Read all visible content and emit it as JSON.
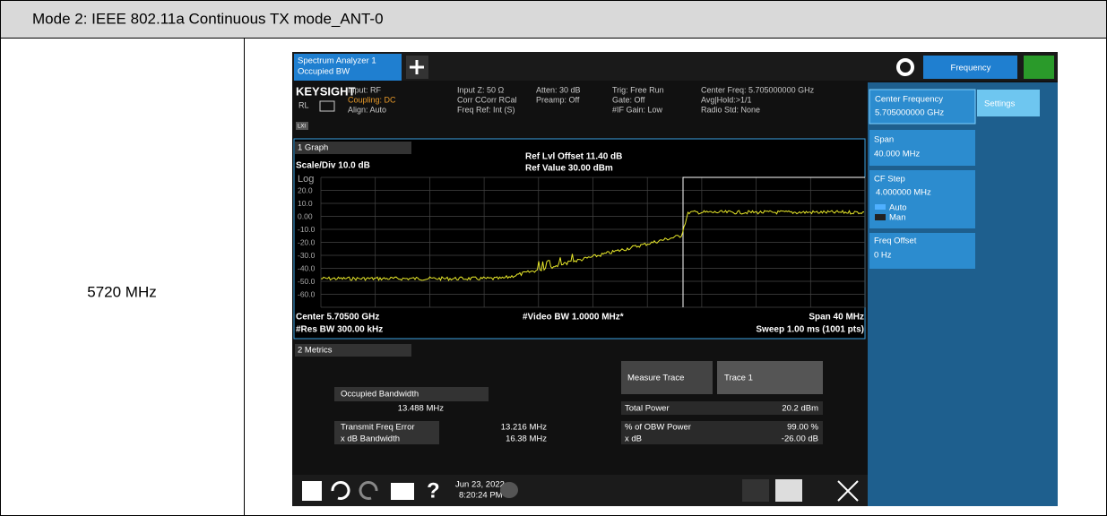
{
  "header": {
    "title": "Mode 2: IEEE 802.11a Continuous TX mode_ANT-0"
  },
  "row": {
    "label": "5720 MHz"
  },
  "screenshot": {
    "tab": {
      "name": "Spectrum Analyzer 1",
      "measurement": "Occupied BW"
    },
    "menu": "Frequency",
    "status": {
      "brand": "KEYSIGHT",
      "rl": "RL",
      "lxi": "LXI",
      "columns": [
        [
          "Input: RF",
          "Coupling: DC",
          "Align: Auto"
        ],
        [
          "Input Z: 50 Ω",
          "Corr CCorr RCal",
          "Freq Ref: Int (S)"
        ],
        [
          "Atten: 30 dB",
          "Preamp: Off"
        ],
        [
          "Trig: Free Run",
          "Gate: Off",
          "#IF Gain: Low"
        ],
        [
          "Center Freq: 5.705000000 GHz",
          "Avg|Hold:>1/1",
          "Radio Std: None"
        ]
      ]
    },
    "panel": {
      "center_label": "Center Frequency",
      "center_value": "5.705000000 GHz",
      "settings": "Settings",
      "span_label": "Span",
      "span_value": "40.000 MHz",
      "step_label": "CF Step",
      "step_value": "4.000000 MHz",
      "auto": "Auto",
      "man": "Man",
      "offset_label": "Freq Offset",
      "offset_value": "0 Hz"
    },
    "graph": {
      "name": "1 Graph",
      "scale": "Scale/Div 10.0 dB",
      "ref_offset": "Ref Lvl Offset 11.40 dB",
      "ref_value": "Ref Value 30.00 dBm",
      "log": "Log",
      "ylabels": [
        "20.0",
        "10.0",
        "0.00",
        "-10.0",
        "-20.0",
        "-30.0",
        "-40.0",
        "-50.0",
        "-60.0"
      ],
      "center": "Center 5.70500 GHz",
      "res_bw": "#Res BW 300.00 kHz",
      "video_bw": "#Video BW 1.0000 MHz*",
      "span": "Span 40 MHz",
      "sweep": "Sweep 1.00 ms (1001 pts)"
    },
    "metrics": {
      "name": "2 Metrics",
      "obw_label": "Occupied Bandwidth",
      "obw_value": "13.488 MHz",
      "tfe_label": "Transmit Freq Error",
      "tfe_value": "13.216 MHz",
      "xdb_bw_label": "x dB Bandwidth",
      "xdb_bw_value": "16.38 MHz",
      "trace_label": "Measure Trace",
      "trace_value": "Trace 1",
      "power_label": "Total Power",
      "power_value": "20.2 dBm",
      "pct_label": "% of OBW Power",
      "pct_value": "99.00 %",
      "xdb_label": "x dB",
      "xdb_value": "-26.00 dB"
    },
    "taskbar": {
      "date": "Jun 23, 2022",
      "time": "8:20:24 PM"
    }
  }
}
